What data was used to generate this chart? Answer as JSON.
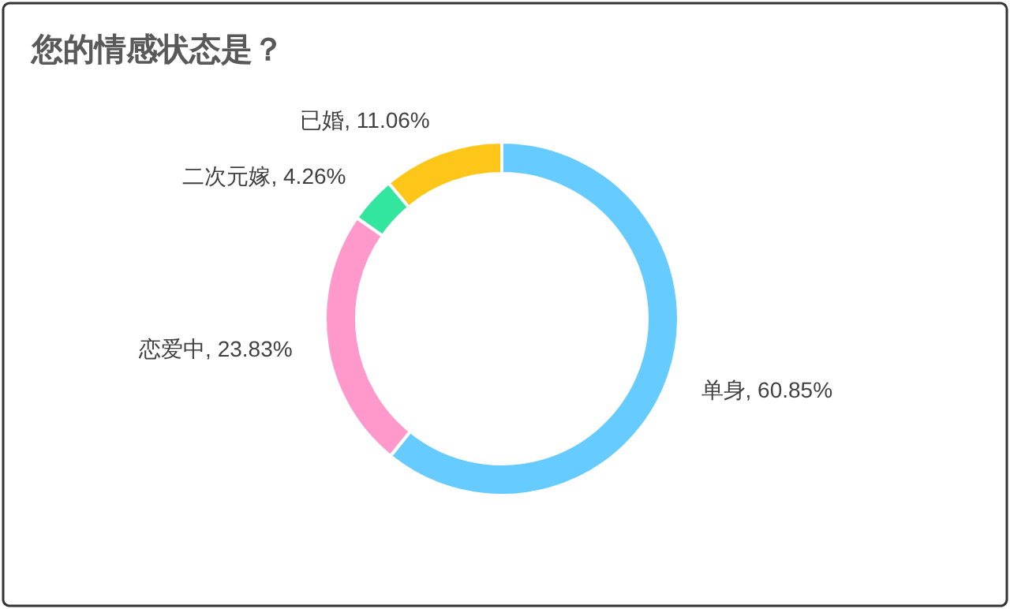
{
  "chart_data": {
    "type": "donut",
    "title": "您的情感状态是？",
    "categories": [
      "单身",
      "恋爱中",
      "二次元嫁",
      "已婚"
    ],
    "values": [
      60.85,
      23.83,
      4.26,
      11.06
    ],
    "colors": [
      "#66ccff",
      "#ff99cc",
      "#33e69f",
      "#ffc61a"
    ],
    "value_labels": [
      "60.85%",
      "23.83%",
      "4.26%",
      "11.06%"
    ]
  }
}
